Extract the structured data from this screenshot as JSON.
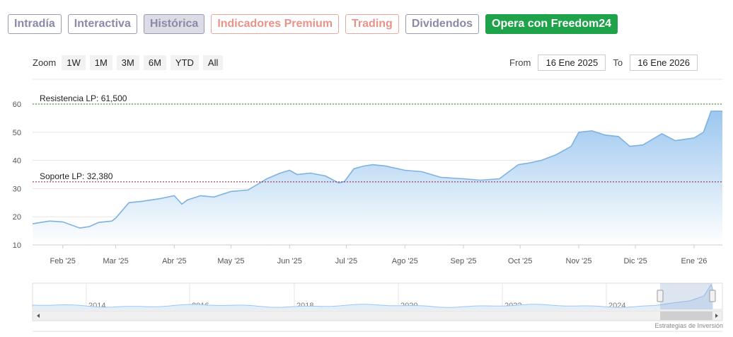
{
  "tabs": [
    {
      "label": "Intradía",
      "style": "normal"
    },
    {
      "label": "Interactiva",
      "style": "normal"
    },
    {
      "label": "Histórica",
      "style": "active"
    },
    {
      "label": "Indicadores Premium",
      "style": "premium"
    },
    {
      "label": "Trading",
      "style": "premium"
    },
    {
      "label": "Dividendos",
      "style": "normal"
    },
    {
      "label": "Opera con Freedom24",
      "style": "cta"
    }
  ],
  "zoom": {
    "label": "Zoom",
    "buttons": [
      "1W",
      "1M",
      "3M",
      "6M",
      "YTD",
      "All"
    ]
  },
  "range": {
    "from_label": "From",
    "from_value": "16 Ene 2025",
    "to_label": "To",
    "to_value": "16 Ene 2026"
  },
  "credit": "Estrategias de Inversión",
  "chart_data": {
    "type": "area",
    "ylim": [
      10,
      60
    ],
    "yticks": [
      "10",
      "20",
      "30",
      "40",
      "50",
      "60"
    ],
    "x_tick_labels": [
      "Feb '25",
      "Mar '25",
      "Abr '25",
      "May '25",
      "Jun '25",
      "Jul '25",
      "Ago '25",
      "Sep '25",
      "Oct '25",
      "Nov '25",
      "Dic '25",
      "Ene '26"
    ],
    "x": [
      "2025-01-16",
      "2025-01-25",
      "2025-02-01",
      "2025-02-10",
      "2025-02-15",
      "2025-02-20",
      "2025-02-27",
      "2025-03-01",
      "2025-03-08",
      "2025-03-15",
      "2025-03-25",
      "2025-04-01",
      "2025-04-05",
      "2025-04-08",
      "2025-04-15",
      "2025-04-22",
      "2025-05-01",
      "2025-05-10",
      "2025-05-20",
      "2025-05-27",
      "2025-06-01",
      "2025-06-05",
      "2025-06-12",
      "2025-06-20",
      "2025-06-27",
      "2025-06-30",
      "2025-07-05",
      "2025-07-10",
      "2025-07-15",
      "2025-07-22",
      "2025-08-01",
      "2025-08-10",
      "2025-08-20",
      "2025-09-01",
      "2025-09-10",
      "2025-09-20",
      "2025-09-30",
      "2025-10-05",
      "2025-10-12",
      "2025-10-20",
      "2025-10-28",
      "2025-11-01",
      "2025-11-08",
      "2025-11-15",
      "2025-11-22",
      "2025-11-28",
      "2025-12-05",
      "2025-12-15",
      "2025-12-22",
      "2026-01-01",
      "2026-01-06",
      "2026-01-10",
      "2026-01-16"
    ],
    "values": [
      17.5,
      18.5,
      18.2,
      16.0,
      16.5,
      18.0,
      18.5,
      19.5,
      25.0,
      25.5,
      26.5,
      27.5,
      24.5,
      26.0,
      27.5,
      27.0,
      29.0,
      29.5,
      33.5,
      35.5,
      36.5,
      35.0,
      35.5,
      34.5,
      32.0,
      32.5,
      37.0,
      38.0,
      38.5,
      38.0,
      36.5,
      36.0,
      34.0,
      33.5,
      33.0,
      33.5,
      38.5,
      39.0,
      40.0,
      42.0,
      45.0,
      50.0,
      50.5,
      49.0,
      48.5,
      45.0,
      45.5,
      49.5,
      47.0,
      48.0,
      50.0,
      57.5,
      57.5
    ],
    "annotations": [
      {
        "label": "Resistencia LP: 61,500",
        "value": 61.5,
        "color": "#2e7d32"
      },
      {
        "label": "Soporte LP: 32,380",
        "value": 32.38,
        "color": "#8b1a3a"
      }
    ],
    "navigator": {
      "year_labels": [
        "2014",
        "2016",
        "2018",
        "2020",
        "2022",
        "2024"
      ]
    },
    "colors": {
      "line": "#7eb2e0",
      "fill_top": "#9cc7ef",
      "fill_bottom": "#ffffff"
    }
  }
}
